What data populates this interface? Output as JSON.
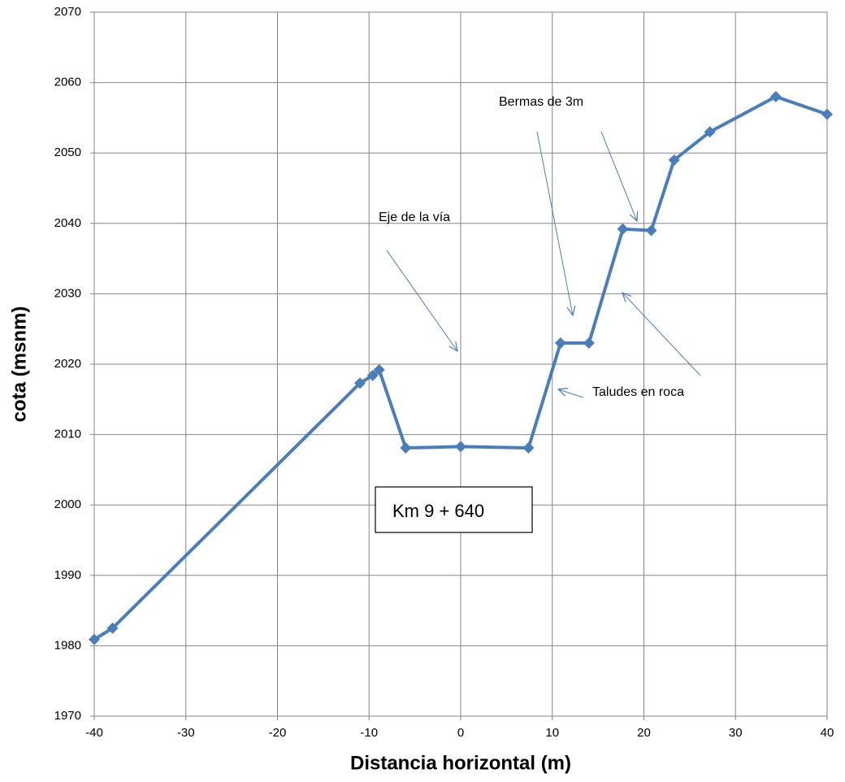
{
  "chart_data": {
    "type": "line",
    "x_label": "Distancia horizontal (m)",
    "y_label": "cota (msnm)",
    "x": [
      -40,
      -38,
      -11,
      -9.6,
      -8.9,
      -6,
      0,
      7.4,
      10.9,
      14,
      17.7,
      20.8,
      23.3,
      27.2,
      34.4,
      40
    ],
    "series": [
      {
        "color": "#4a7ebb",
        "values": [
          1980.9,
          1982.5,
          2017.3,
          2018.4,
          2019.2,
          2008.1,
          2008.3,
          2008.1,
          2023,
          2023,
          2039.2,
          2039,
          2049,
          2053,
          2058,
          2055.5
        ]
      }
    ],
    "xlim": [
      -40,
      40
    ],
    "xticks": [
      -40,
      -30,
      -20,
      -10,
      0,
      10,
      20,
      30,
      40
    ],
    "ylim": [
      1970,
      2070
    ],
    "yticks": [
      1970,
      1980,
      1990,
      2000,
      2010,
      2020,
      2030,
      2040,
      2050,
      2060,
      2070
    ],
    "grid": true,
    "annotations": [
      "Eje de la vía",
      "Bermas de 3m",
      "Taludes en roca",
      "Km 9 + 640"
    ]
  }
}
